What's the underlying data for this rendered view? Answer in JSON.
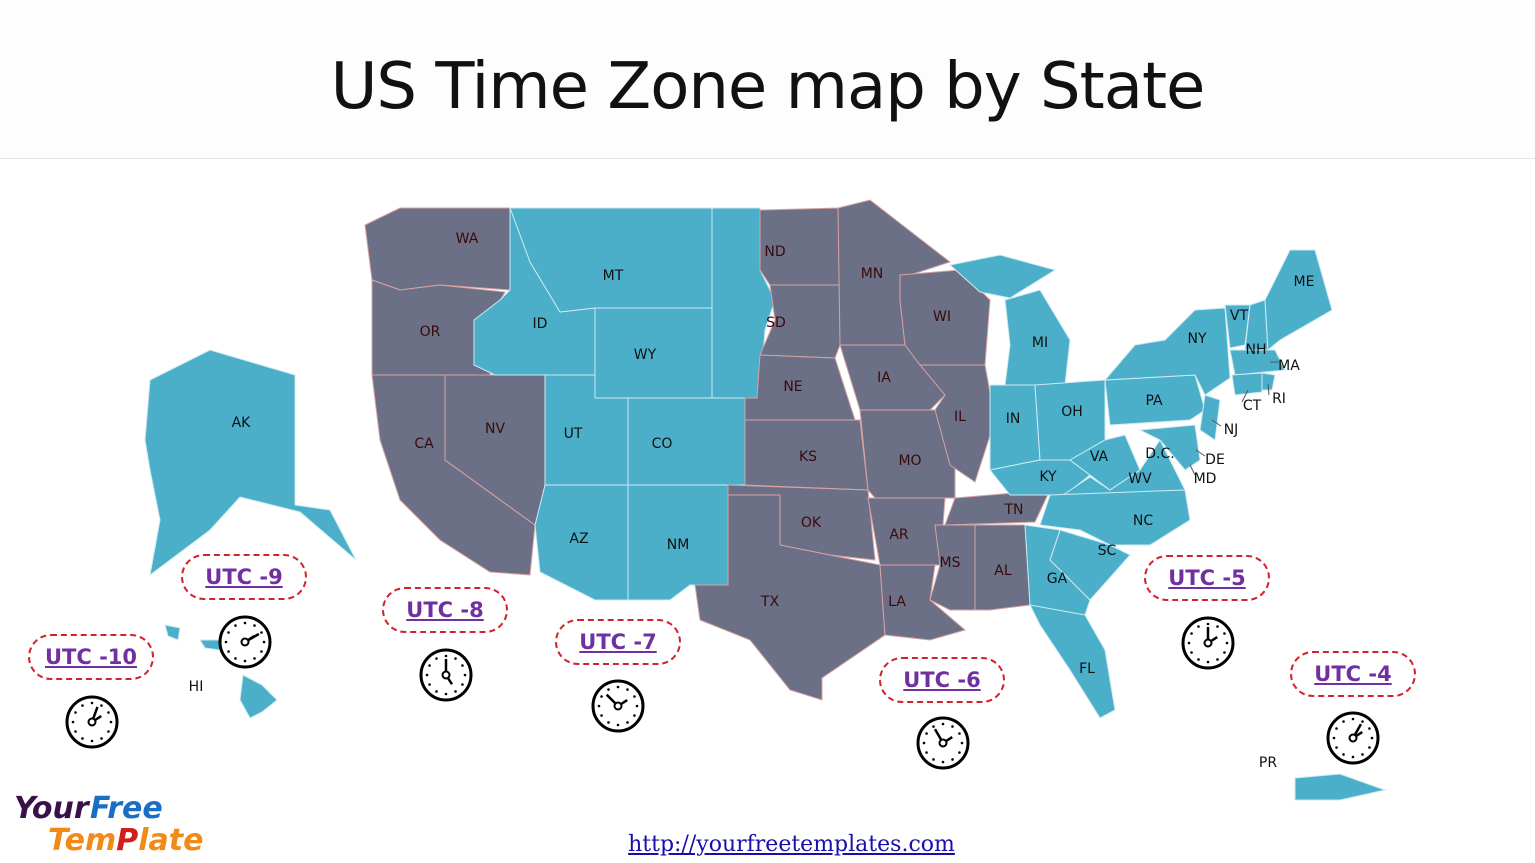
{
  "title": "US Time Zone map by State",
  "colors": {
    "central_pacific_zone": "#6b7086",
    "mountain_eastern_zone": "#4bafca",
    "utc_label": "#7030a0",
    "utc_border": "#d2232a"
  },
  "states": {
    "WA": "WA",
    "OR": "OR",
    "CA": "CA",
    "NV": "NV",
    "ID": "ID",
    "MT": "MT",
    "WY": "WY",
    "UT": "UT",
    "CO": "CO",
    "AZ": "AZ",
    "NM": "NM",
    "ND": "ND",
    "SD": "SD",
    "NE": "NE",
    "KS": "KS",
    "OK": "OK",
    "TX": "TX",
    "MN": "MN",
    "IA": "IA",
    "MO": "MO",
    "AR": "AR",
    "LA": "LA",
    "WI": "WI",
    "IL": "IL",
    "TN": "TN",
    "MS": "MS",
    "AL": "AL",
    "MI": "MI",
    "IN": "IN",
    "OH": "OH",
    "KY": "KY",
    "WV": "WV",
    "VA": "VA",
    "NC": "NC",
    "SC": "SC",
    "GA": "GA",
    "FL": "FL",
    "PA": "PA",
    "NY": "NY",
    "VT": "VT",
    "NH": "NH",
    "ME": "ME",
    "MA": "MA",
    "CT": "CT",
    "RI": "RI",
    "NJ": "NJ",
    "DE": "DE",
    "MD": "MD",
    "DC": "D.C.",
    "AK": "AK",
    "HI": "HI",
    "PR": "PR"
  },
  "zones": [
    "UTC -10",
    "UTC -9",
    "UTC -8",
    "UTC -7",
    "UTC -6",
    "UTC -5",
    "UTC -4"
  ],
  "logo": {
    "line1a": "Your",
    "line1b": "Free",
    "line2": "Templates"
  },
  "link": "http://yourfreetemplates.com"
}
